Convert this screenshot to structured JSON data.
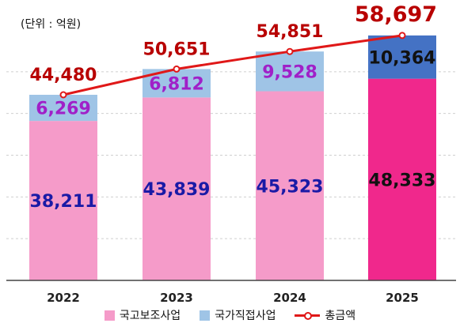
{
  "unit_label": "(단위 : 억원)",
  "colors": {
    "subsidy_light": "#f59bc9",
    "subsidy_dark": "#f0288c",
    "direct_light": "#9fc4e6",
    "direct_dark": "#4472c4",
    "total_line": "#e01818",
    "total_label": "#b80000",
    "subsidy_label": "#1a1aa6",
    "subsidy_label_dark": "#111111",
    "direct_label": "#a020c8",
    "direct_label_dark": "#111111",
    "axis": "#444444",
    "grid": "#cfcfcf"
  },
  "chart_data": {
    "type": "bar",
    "stacked": true,
    "categories": [
      "2022",
      "2023",
      "2024",
      "2025"
    ],
    "series": [
      {
        "name": "국고보조사업",
        "values": [
          38211,
          43839,
          45323,
          48333
        ]
      },
      {
        "name": "국가직접사업",
        "values": [
          6269,
          6812,
          9528,
          10364
        ]
      }
    ],
    "line": {
      "name": "총금액",
      "values": [
        44480,
        50651,
        54851,
        58697
      ]
    },
    "ylim": [
      0,
      60000
    ],
    "grid": "dashed horizontal",
    "legend_position": "bottom",
    "labels": {
      "subsidy": [
        "38,211",
        "43,839",
        "45,323",
        "48,333"
      ],
      "direct": [
        "6,269",
        "6,812",
        "9,528",
        "10,364"
      ],
      "total": [
        "44,480",
        "50,651",
        "54,851",
        "58,697"
      ]
    }
  }
}
